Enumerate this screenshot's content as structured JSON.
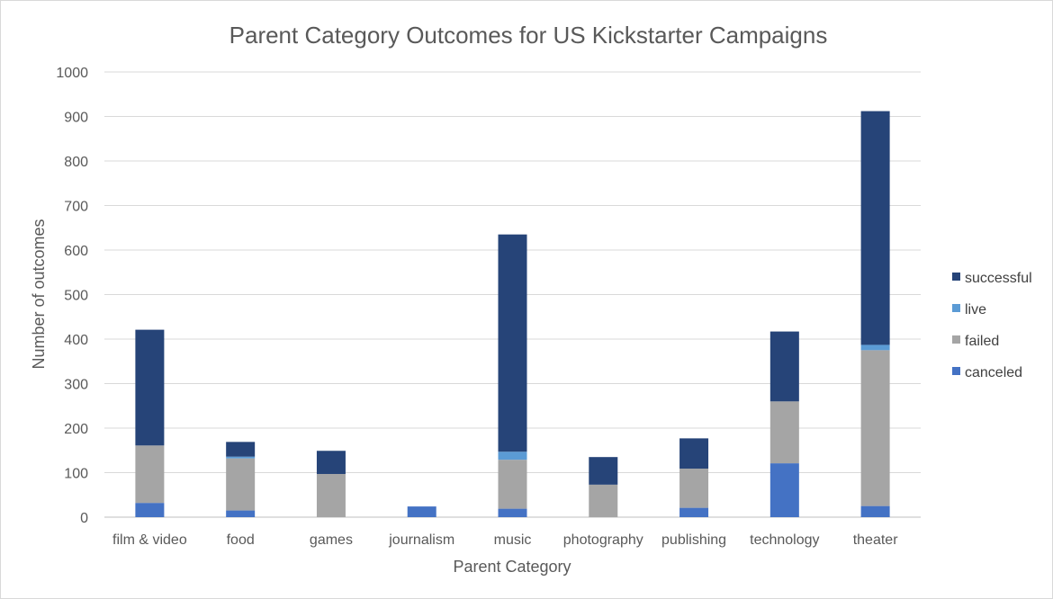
{
  "chart_data": {
    "type": "bar",
    "stacked": true,
    "title": "Parent Category Outcomes for US Kickstarter Campaigns",
    "xlabel": "Parent Category",
    "ylabel": "Number of outcomes",
    "ylim": [
      0,
      1000
    ],
    "yticks": [
      0,
      100,
      200,
      300,
      400,
      500,
      600,
      700,
      800,
      900,
      1000
    ],
    "grid": true,
    "legend_position": "right",
    "categories": [
      "film & video",
      "food",
      "games",
      "journalism",
      "music",
      "photography",
      "publishing",
      "technology",
      "theater"
    ],
    "series": [
      {
        "name": "canceled",
        "color": "#4472c4",
        "values": [
          32,
          15,
          0,
          24,
          19,
          0,
          21,
          121,
          25
        ]
      },
      {
        "name": "failed",
        "color": "#a5a5a5",
        "values": [
          129,
          117,
          97,
          0,
          110,
          73,
          88,
          139,
          350
        ]
      },
      {
        "name": "live",
        "color": "#5b9bd5",
        "values": [
          0,
          4,
          0,
          0,
          18,
          0,
          0,
          0,
          12
        ]
      },
      {
        "name": "successful",
        "color": "#264478",
        "values": [
          260,
          33,
          52,
          0,
          488,
          62,
          68,
          157,
          525
        ]
      }
    ]
  }
}
